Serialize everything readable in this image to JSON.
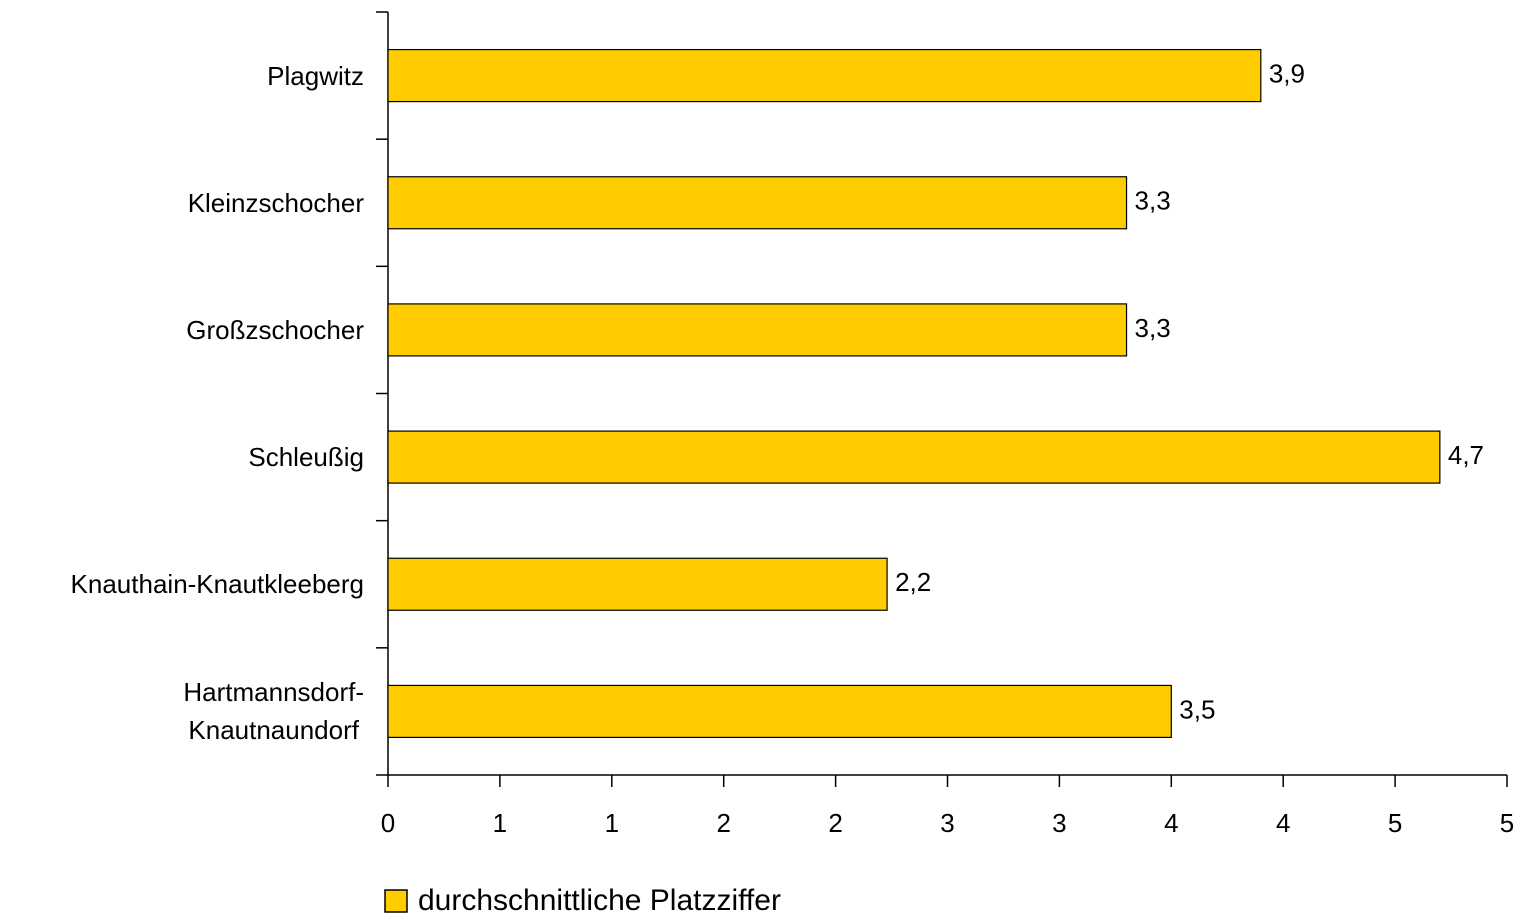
{
  "chart_data": {
    "type": "barh",
    "categories": [
      "Plagwitz",
      "Kleinzschocher",
      "Großzschocher",
      "Schleußig",
      "Knauthain-Knautkleeberg",
      "Hartmannsdorf-\nKnautnaundorf"
    ],
    "series": [
      {
        "name": "durchschnittliche Platzziffer",
        "color": "#ffcc00",
        "values": [
          3.9,
          3.3,
          3.3,
          4.7,
          2.23,
          3.5
        ],
        "value_labels": [
          "3,9",
          "3,3",
          "3,3",
          "4,7",
          "2,2",
          "3,5"
        ]
      }
    ],
    "xlim": [
      0,
      5
    ],
    "xticks": [
      0,
      {
        "value": 0.5,
        "label": "1"
      },
      1,
      {
        "value": 1.5,
        "label": "2"
      },
      2,
      {
        "value": 2.5,
        "label": "3"
      },
      3,
      {
        "value": 3.5,
        "label": "4"
      },
      4,
      {
        "value": 4.5,
        "label": "5"
      },
      5
    ],
    "grid": false,
    "legend": "bottom"
  }
}
